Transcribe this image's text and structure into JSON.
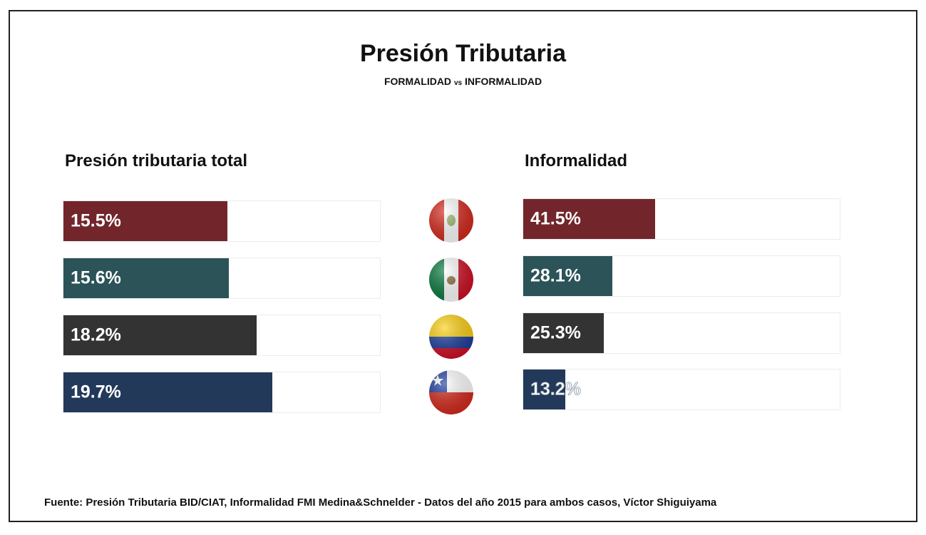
{
  "chart_data": {
    "type": "bar",
    "title": "Presión Tributaria",
    "subtitle": {
      "left": "FORMALIDAD",
      "vs": "vs",
      "right": "INFORMALIDAD"
    },
    "categories": [
      "Perú",
      "México",
      "Colombia",
      "Chile"
    ],
    "panels": [
      {
        "name": "Presión tributaria total",
        "values": [
          15.5,
          15.6,
          18.2,
          19.7
        ],
        "labels": [
          "15.5%",
          "15.6%",
          "18.2%",
          "19.7%"
        ],
        "xlim": [
          0,
          30
        ]
      },
      {
        "name": "Informalidad",
        "values": [
          41.5,
          28.1,
          25.3,
          13.2
        ],
        "labels": [
          "41.5%",
          "28.1%",
          "25.3%",
          "13.2%"
        ],
        "xlim": [
          0,
          100
        ]
      }
    ],
    "colors": [
      "#72262b",
      "#2b5358",
      "#333333",
      "#23395a"
    ],
    "flags": [
      "peru-flag-icon",
      "mexico-flag-icon",
      "colombia-flag-icon",
      "chile-flag-icon"
    ],
    "grid": false,
    "legend": "none"
  },
  "footnote": "Fuente: Presión Tributaria BID/CIAT, Informalidad FMI Medina&Schnelder - Datos del año 2015 para ambos casos, Víctor Shiguiyama"
}
